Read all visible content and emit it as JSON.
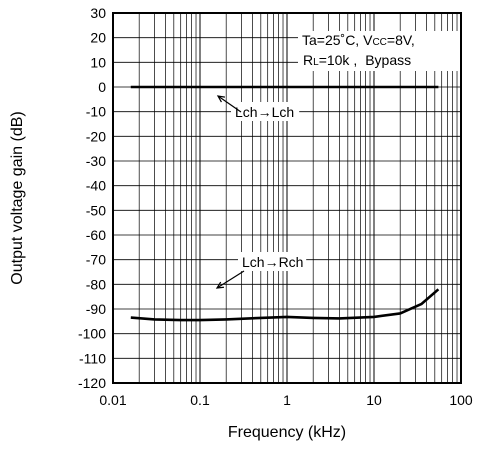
{
  "chart_data": {
    "type": "line",
    "xscale": "log",
    "xlim": [
      0.01,
      100
    ],
    "ylim": [
      -120,
      30
    ],
    "xlabel": "Frequency (kHz)",
    "ylabel": "Output voltage gain (dB)",
    "x_ticks": [
      "0.01",
      "0.1",
      "1",
      "10",
      "100"
    ],
    "y_ticks": [
      "30",
      "20",
      "10",
      "0",
      "-10",
      "-20",
      "-30",
      "-40",
      "-50",
      "-60",
      "-70",
      "-80",
      "-90",
      "-100",
      "-110",
      "-120"
    ],
    "grid": true,
    "conditions": {
      "line1": {
        "ta": "Ta=25˚C, V",
        "vcc_sub": "CC",
        "vcc_val": "=8V,",
        "rl": "R",
        "rl_sub": "L",
        "rl_rest": "=10k ,",
        "mode": "Bypass"
      }
    },
    "series": [
      {
        "name": "Lch→Lch",
        "x": [
          0.016,
          0.03,
          0.1,
          0.3,
          1,
          3,
          10,
          30,
          55
        ],
        "y": [
          0,
          0,
          0,
          0,
          0,
          0,
          0,
          0,
          0
        ]
      },
      {
        "name": "Lch→Rch",
        "x": [
          0.016,
          0.03,
          0.06,
          0.1,
          0.2,
          0.5,
          1,
          2,
          4,
          10,
          20,
          35,
          55
        ],
        "y": [
          -93.5,
          -94.2,
          -94.5,
          -94.5,
          -94.2,
          -93.6,
          -93.2,
          -93.6,
          -93.8,
          -93.2,
          -91.8,
          -88,
          -82
        ]
      }
    ],
    "annotations": [
      {
        "text": "Lch→Lch",
        "series": 0,
        "at_x": 0.13,
        "at_y": 0
      },
      {
        "text": "Lch→Rch",
        "series": 1,
        "at_x": 0.1,
        "at_y": -94.5
      }
    ]
  }
}
